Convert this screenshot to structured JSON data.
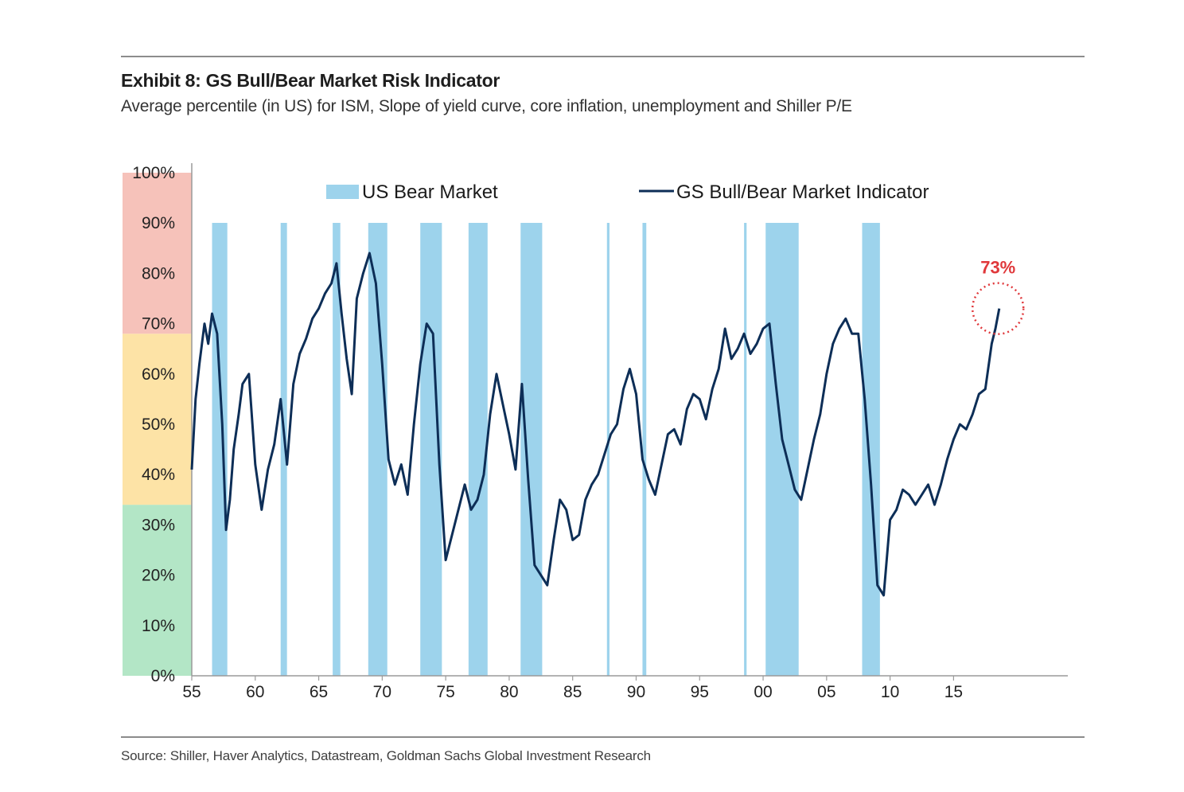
{
  "header": {
    "title": "Exhibit 8: GS Bull/Bear Market Risk Indicator",
    "subtitle": "Average percentile (in US) for ISM, Slope of yield curve, core inflation, unemployment and Shiller P/E"
  },
  "footer": {
    "source": "Source: Shiller, Haver Analytics, Datastream, Goldman Sachs Global Investment Research"
  },
  "chart_data": {
    "type": "line",
    "title": "Exhibit 8: GS Bull/Bear Market Risk Indicator",
    "xlabel": "",
    "ylabel": "",
    "xlim": [
      1955,
      2024
    ],
    "ylim": [
      0,
      100
    ],
    "x_ticks": [
      1955,
      1960,
      1965,
      1970,
      1975,
      1980,
      1985,
      1990,
      1995,
      2000,
      2005,
      2010,
      2015
    ],
    "x_tick_labels": [
      "55",
      "60",
      "65",
      "70",
      "75",
      "80",
      "85",
      "90",
      "95",
      "00",
      "05",
      "10",
      "15"
    ],
    "y_ticks": [
      0,
      10,
      20,
      30,
      40,
      50,
      60,
      70,
      80,
      90,
      100
    ],
    "y_tick_labels": [
      "0%",
      "10%",
      "20%",
      "30%",
      "40%",
      "50%",
      "60%",
      "70%",
      "80%",
      "90%",
      "100%"
    ],
    "risk_zones": [
      {
        "from": 0,
        "to": 34,
        "color": "#b3e6c6"
      },
      {
        "from": 34,
        "to": 68,
        "color": "#fde3a6"
      },
      {
        "from": 68,
        "to": 100,
        "color": "#f6c2ba"
      }
    ],
    "legend": [
      "US Bear Market",
      "GS Bull/Bear Market Indicator"
    ],
    "bear_markets": [
      {
        "start": 1956.6,
        "end": 1957.8
      },
      {
        "start": 1962.0,
        "end": 1962.5
      },
      {
        "start": 1966.1,
        "end": 1966.7
      },
      {
        "start": 1968.9,
        "end": 1970.4
      },
      {
        "start": 1973.0,
        "end": 1974.7
      },
      {
        "start": 1976.8,
        "end": 1978.3
      },
      {
        "start": 1980.9,
        "end": 1982.6
      },
      {
        "start": 1987.7,
        "end": 1987.9
      },
      {
        "start": 1990.5,
        "end": 1990.8
      },
      {
        "start": 1998.5,
        "end": 1998.7
      },
      {
        "start": 2000.2,
        "end": 2002.8
      },
      {
        "start": 2007.8,
        "end": 2009.2
      }
    ],
    "series": [
      {
        "name": "GS Bull/Bear Market Indicator",
        "color": "#0d2e57",
        "x": [
          1955.0,
          1955.3,
          1955.6,
          1956.0,
          1956.3,
          1956.6,
          1957.0,
          1957.4,
          1957.7,
          1958.0,
          1958.3,
          1958.7,
          1959.0,
          1959.5,
          1960.0,
          1960.5,
          1961.0,
          1961.5,
          1962.0,
          1962.5,
          1963.0,
          1963.5,
          1964.0,
          1964.5,
          1965.0,
          1965.5,
          1966.0,
          1966.4,
          1966.8,
          1967.2,
          1967.6,
          1968.0,
          1968.5,
          1969.0,
          1969.5,
          1970.0,
          1970.5,
          1971.0,
          1971.5,
          1972.0,
          1972.5,
          1973.0,
          1973.5,
          1974.0,
          1974.5,
          1975.0,
          1975.5,
          1976.0,
          1976.5,
          1977.0,
          1977.5,
          1978.0,
          1978.5,
          1979.0,
          1979.5,
          1980.0,
          1980.5,
          1981.0,
          1981.5,
          1982.0,
          1982.5,
          1983.0,
          1983.5,
          1984.0,
          1984.5,
          1985.0,
          1985.5,
          1986.0,
          1986.5,
          1987.0,
          1987.5,
          1988.0,
          1988.5,
          1989.0,
          1989.5,
          1990.0,
          1990.5,
          1991.0,
          1991.5,
          1992.0,
          1992.5,
          1993.0,
          1993.5,
          1994.0,
          1994.5,
          1995.0,
          1995.5,
          1996.0,
          1996.5,
          1997.0,
          1997.5,
          1998.0,
          1998.5,
          1999.0,
          1999.5,
          2000.0,
          2000.5,
          2001.0,
          2001.5,
          2002.0,
          2002.5,
          2003.0,
          2003.5,
          2004.0,
          2004.5,
          2005.0,
          2005.5,
          2006.0,
          2006.5,
          2007.0,
          2007.5,
          2008.0,
          2008.5,
          2009.0,
          2009.5,
          2010.0,
          2010.5,
          2011.0,
          2011.5,
          2012.0,
          2012.5,
          2013.0,
          2013.5,
          2014.0,
          2014.5,
          2015.0,
          2015.5,
          2016.0,
          2016.5,
          2017.0,
          2017.5,
          2018.0,
          2018.3,
          2018.6
        ],
        "values": [
          41,
          55,
          62,
          70,
          66,
          72,
          68,
          50,
          29,
          35,
          45,
          52,
          58,
          60,
          42,
          33,
          41,
          46,
          55,
          42,
          58,
          64,
          67,
          71,
          73,
          76,
          78,
          82,
          72,
          63,
          56,
          75,
          80,
          84,
          78,
          62,
          43,
          38,
          42,
          36,
          50,
          62,
          70,
          68,
          42,
          23,
          28,
          33,
          38,
          33,
          35,
          40,
          52,
          60,
          54,
          48,
          41,
          58,
          39,
          22,
          20,
          18,
          27,
          35,
          33,
          27,
          28,
          35,
          38,
          40,
          44,
          48,
          50,
          57,
          61,
          56,
          43,
          39,
          36,
          42,
          48,
          49,
          46,
          53,
          56,
          55,
          51,
          57,
          61,
          69,
          63,
          65,
          68,
          64,
          66,
          69,
          70,
          58,
          47,
          42,
          37,
          35,
          41,
          47,
          52,
          60,
          66,
          69,
          71,
          68,
          68,
          55,
          38,
          18,
          16,
          31,
          33,
          37,
          36,
          34,
          36,
          38,
          34,
          38,
          43,
          47,
          50,
          49,
          52,
          56,
          57,
          66,
          69,
          73
        ]
      }
    ],
    "annotation": {
      "text": "73%",
      "x": 2018.5,
      "y": 73
    }
  }
}
